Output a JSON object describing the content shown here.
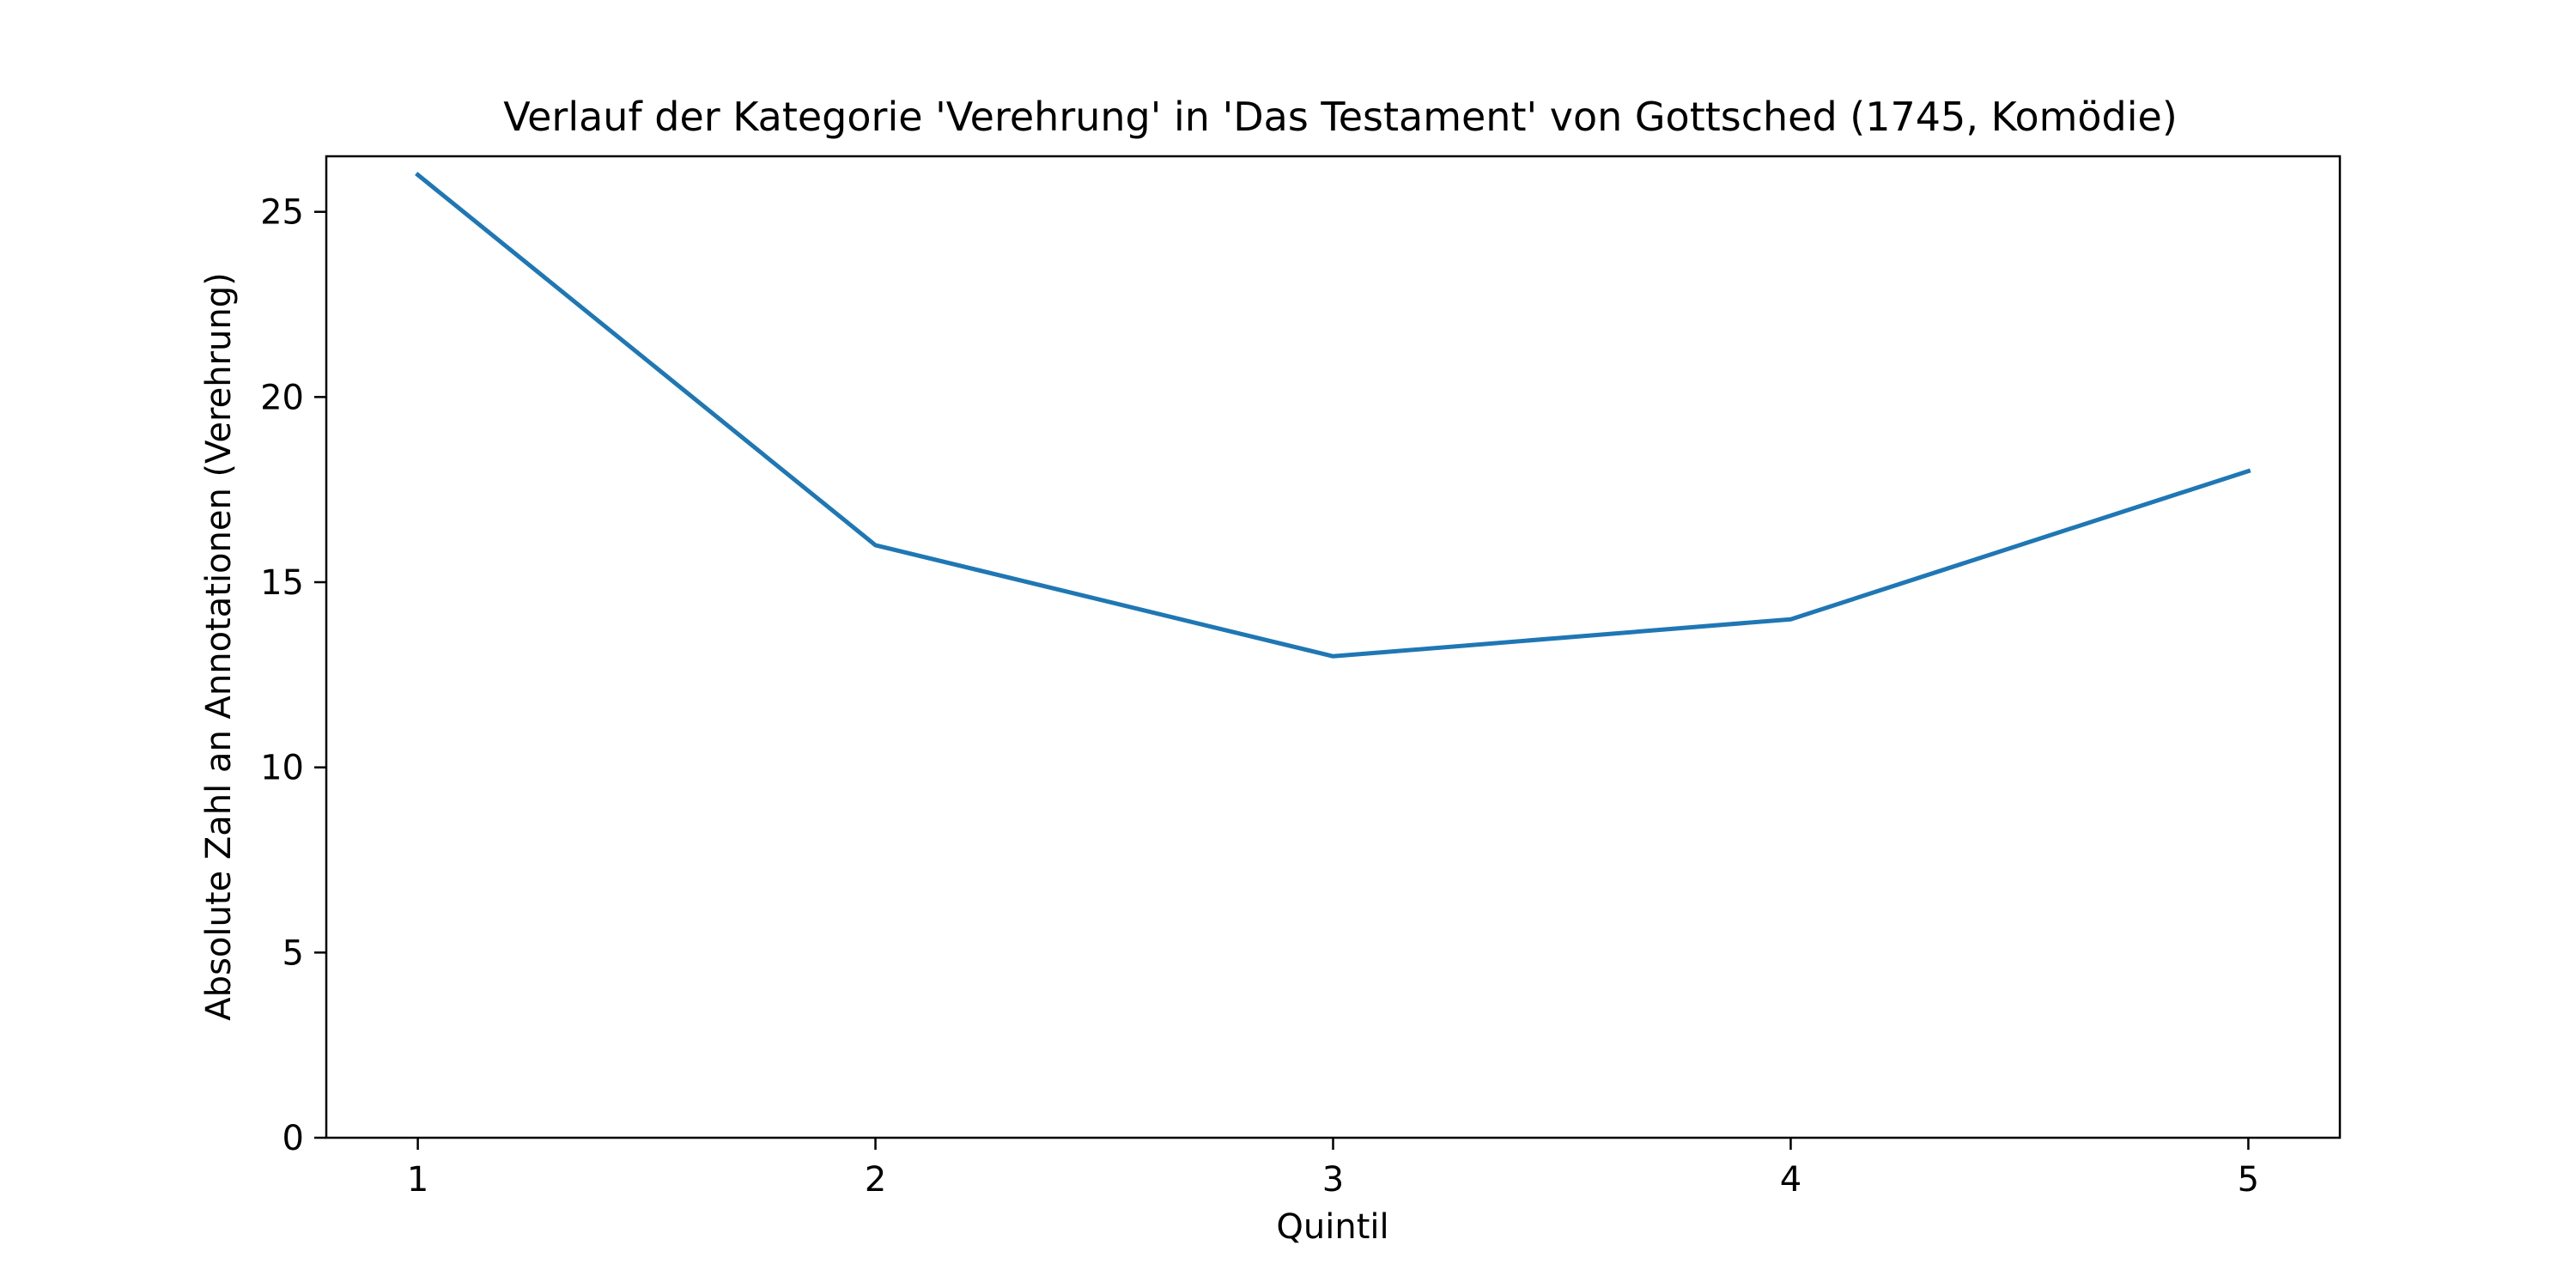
{
  "chart_data": {
    "type": "line",
    "title": "Verlauf der Kategorie 'Verehrung' in 'Das Testament' von Gottsched (1745, Komödie)",
    "xlabel": "Quintil",
    "ylabel": "Absolute Zahl an Annotationen (Verehrung)",
    "x": [
      1,
      2,
      3,
      4,
      5
    ],
    "x_tick_labels": [
      "1",
      "2",
      "3",
      "4",
      "5"
    ],
    "y_ticks": [
      0,
      5,
      10,
      15,
      20,
      25
    ],
    "y_tick_labels": [
      "0",
      "5",
      "10",
      "15",
      "20",
      "25"
    ],
    "xlim": [
      0.8,
      5.2
    ],
    "ylim": [
      0,
      26.5
    ],
    "grid": false,
    "legend": "none",
    "series": [
      {
        "values": [
          26,
          16,
          13,
          14,
          18
        ],
        "color": "#1f77b4"
      }
    ]
  }
}
